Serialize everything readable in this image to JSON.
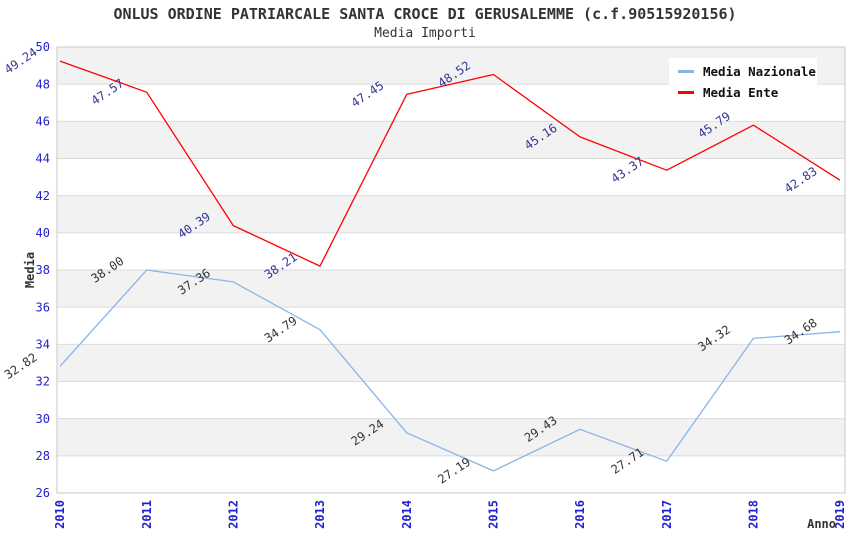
{
  "chart_data": {
    "type": "line",
    "title": "ONLUS ORDINE PATRIARCALE SANTA CROCE DI GERUSALEMME (c.f.90515920156)",
    "subtitle": "Media Importi",
    "x": [
      "2010",
      "2011",
      "2012",
      "2013",
      "2014",
      "2015",
      "2016",
      "2017",
      "2018",
      "2019"
    ],
    "xlabel": "Anno",
    "ylabel": "Media",
    "ylim": [
      26,
      50
    ],
    "ytick_step": 2,
    "grid": true,
    "legend_position": "top-right",
    "series": [
      {
        "name": "Media Nazionale",
        "color": "#8ab4e8",
        "label_color": "#333333",
        "values": [
          32.82,
          38.0,
          37.36,
          34.79,
          29.24,
          27.19,
          29.43,
          27.71,
          34.32,
          34.68
        ]
      },
      {
        "name": "Media Ente",
        "color": "#ff0000",
        "label_color": "#333399",
        "values": [
          49.24,
          47.57,
          40.39,
          38.21,
          47.45,
          48.52,
          45.16,
          43.37,
          45.79,
          42.83
        ]
      }
    ],
    "colors": {
      "tick": "#2222cc",
      "band": "#f2f2f2",
      "grid": "#dcdcdc",
      "border": "#c8c8c8",
      "axis_title": "#333333",
      "title": "#333333"
    }
  }
}
